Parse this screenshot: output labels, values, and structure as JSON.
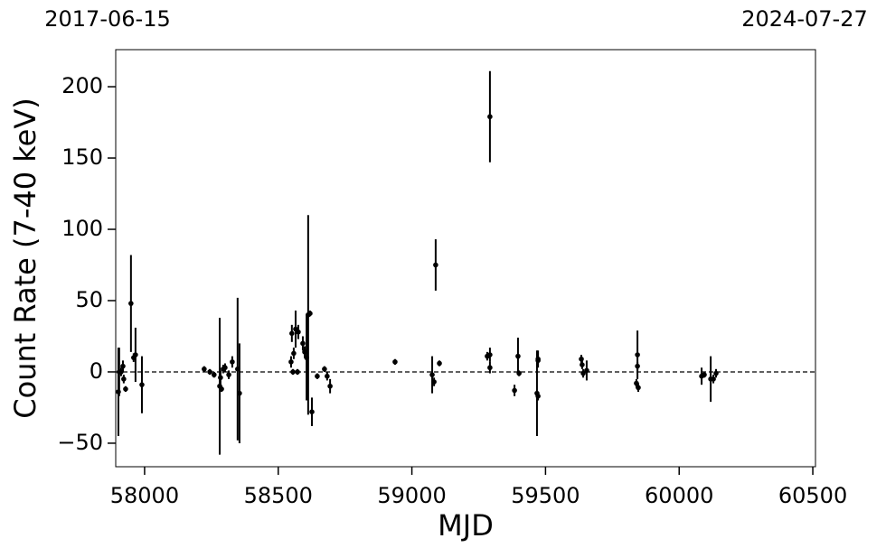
{
  "chart_data": {
    "type": "errorbar",
    "xlabel": "MJD",
    "ylabel": "Count Rate (7-40 keV)",
    "annotations": [
      "2017-06-15",
      "2024-07-27"
    ],
    "xlim": [
      57892,
      60510
    ],
    "ylim": [
      -66.5,
      226
    ],
    "xticks": [
      58000,
      58500,
      59000,
      59500,
      60000,
      60500
    ],
    "yticks": [
      {
        "value": -50,
        "label": "−50"
      },
      0,
      50,
      100,
      150,
      200
    ],
    "hline": 0,
    "color": "#000000",
    "x": [
      57902,
      57905,
      57912,
      57919,
      57922,
      57929,
      57949,
      57959,
      57966,
      57990,
      58223,
      58244,
      58260,
      58281,
      58284,
      58288,
      58294,
      58301,
      58315,
      58328,
      58348,
      58355,
      58548,
      58551,
      58555,
      58558,
      58565,
      58572,
      58575,
      58592,
      58599,
      58606,
      58612,
      58619,
      58626,
      58646,
      58673,
      58683,
      58694,
      58937,
      59076,
      59083,
      59089,
      59103,
      59282,
      59292,
      59292,
      59292,
      59384,
      59397,
      59401,
      59468,
      59472,
      59472,
      59472,
      59634,
      59637,
      59641,
      59654,
      59840,
      59844,
      59844,
      59847,
      60084,
      60094,
      60118,
      60128,
      60138
    ],
    "values": [
      -14,
      0,
      0,
      4,
      -5,
      -12,
      48,
      10,
      12,
      -9,
      2,
      0,
      -2,
      -10,
      -4,
      -12,
      2,
      3,
      -2,
      7,
      2,
      -15,
      7,
      27,
      0,
      13,
      30,
      0,
      28,
      20,
      14,
      10,
      40,
      41,
      -28,
      -3,
      2,
      -3,
      -10,
      7,
      -2,
      -7,
      75,
      6,
      11,
      179,
      12,
      3,
      -13,
      11,
      -1,
      -15,
      -17,
      9,
      8,
      9,
      5,
      -1,
      1,
      -8,
      12,
      4,
      -11,
      -3,
      -2,
      -5,
      -5,
      -1
    ],
    "errors": [
      31,
      17,
      3,
      4,
      3,
      2,
      34,
      3,
      19,
      20,
      2,
      2,
      2,
      48,
      5,
      2,
      3,
      3,
      3,
      4,
      50,
      35,
      4,
      6,
      2,
      4,
      13,
      2,
      5,
      5,
      4,
      30,
      70,
      2,
      10,
      2,
      2,
      3,
      5,
      2,
      13,
      3,
      18,
      2,
      3,
      32,
      5,
      4,
      4,
      13,
      2,
      30,
      3,
      6,
      2,
      3,
      3,
      3,
      7,
      3,
      17,
      3,
      3,
      6,
      2,
      16,
      3,
      3
    ]
  }
}
